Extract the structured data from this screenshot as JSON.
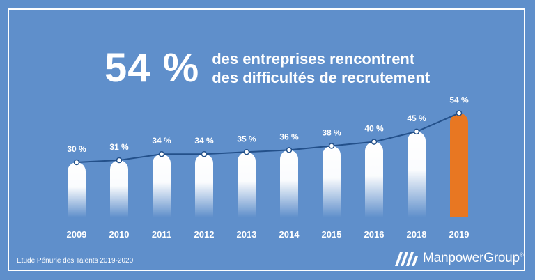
{
  "headline": {
    "stat": "54 %",
    "line1": "des entreprises rencontrent",
    "line2": "des difficultés de recrutement"
  },
  "chart_data": {
    "type": "bar",
    "categories": [
      "2009",
      "2010",
      "2011",
      "2012",
      "2013",
      "2014",
      "2015",
      "2016",
      "2018",
      "2019"
    ],
    "values": [
      30,
      31,
      34,
      34,
      35,
      36,
      38,
      40,
      45,
      54
    ],
    "value_labels": [
      "30 %",
      "31 %",
      "34 %",
      "34 %",
      "35 %",
      "36 %",
      "38 %",
      "40 %",
      "45 %",
      "54 %"
    ],
    "title": "",
    "xlabel": "",
    "ylabel": "",
    "overlay": "line",
    "grid": false,
    "highlight_index": 9,
    "colors": {
      "background": "#5f8fcb",
      "bar": "#ffffff",
      "highlight": "#e87722",
      "line": "#23508a"
    }
  },
  "footer": {
    "source": "Etude Pénurie des Talents 2019-2020",
    "brand": "ManpowerGroup",
    "brand_mark": "®",
    "logo_icon": "manpowergroup-logo-icon"
  }
}
